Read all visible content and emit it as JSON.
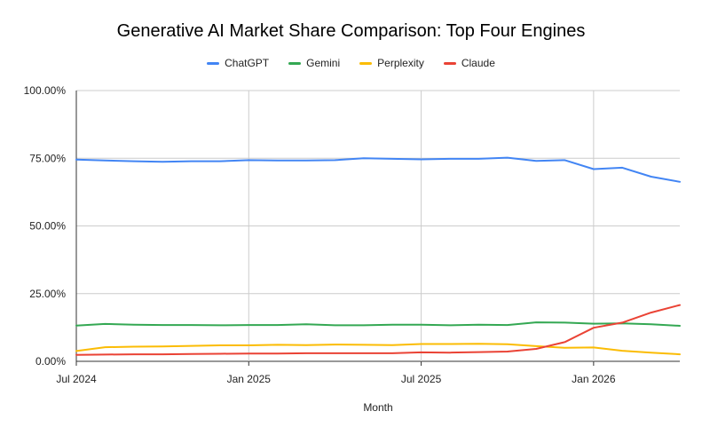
{
  "chart_data": {
    "type": "line",
    "title": "Generative AI Market Share Comparison: Top Four Engines",
    "xlabel": "Month",
    "ylabel": "",
    "ylim": [
      0,
      100
    ],
    "grid": true,
    "legend": "top-center",
    "x": [
      "2024-07",
      "2024-08",
      "2024-09",
      "2024-10",
      "2024-11",
      "2024-12",
      "2025-01",
      "2025-02",
      "2025-03",
      "2025-04",
      "2025-05",
      "2025-06",
      "2025-07",
      "2025-08",
      "2025-09",
      "2025-10",
      "2025-11",
      "2025-12",
      "2026-01",
      "2026-02",
      "2026-03",
      "2026-04"
    ],
    "x_ticks": [
      {
        "x": "2024-07",
        "label": "Jul 2024"
      },
      {
        "x": "2025-01",
        "label": "Jan 2025"
      },
      {
        "x": "2025-07",
        "label": "Jul 2025"
      },
      {
        "x": "2026-01",
        "label": "Jan 2026"
      }
    ],
    "y_ticks": [
      {
        "value": 0,
        "label": "0.00%"
      },
      {
        "value": 25,
        "label": "25.00%"
      },
      {
        "value": 50,
        "label": "50.00%"
      },
      {
        "value": 75,
        "label": "75.00%"
      },
      {
        "value": 100,
        "label": "100.00%"
      }
    ],
    "series": [
      {
        "name": "ChatGPT",
        "color": "#4285F4",
        "values": [
          74.5,
          74.2,
          73.9,
          73.7,
          73.9,
          73.9,
          74.3,
          74.2,
          74.2,
          74.3,
          75.0,
          74.8,
          74.6,
          74.8,
          74.8,
          75.2,
          74.0,
          74.3,
          71.0,
          71.5,
          68.2,
          66.3
        ]
      },
      {
        "name": "Gemini",
        "color": "#34A853",
        "values": [
          13.2,
          13.8,
          13.5,
          13.4,
          13.4,
          13.3,
          13.4,
          13.4,
          13.7,
          13.3,
          13.3,
          13.5,
          13.5,
          13.3,
          13.5,
          13.4,
          14.4,
          14.3,
          13.9,
          14.0,
          13.7,
          13.1
        ]
      },
      {
        "name": "Perplexity",
        "color": "#FBBC04",
        "values": [
          3.8,
          5.2,
          5.4,
          5.5,
          5.7,
          5.9,
          5.9,
          6.1,
          6.0,
          6.2,
          6.1,
          6.0,
          6.4,
          6.4,
          6.5,
          6.3,
          5.6,
          5.0,
          5.1,
          3.9,
          3.2,
          2.6
        ]
      },
      {
        "name": "Claude",
        "color": "#EA4335",
        "values": [
          2.4,
          2.5,
          2.6,
          2.6,
          2.7,
          2.8,
          2.9,
          2.9,
          3.0,
          3.0,
          3.0,
          3.0,
          3.3,
          3.2,
          3.4,
          3.6,
          4.6,
          7.1,
          12.4,
          14.3,
          18.0,
          20.8
        ]
      }
    ]
  }
}
